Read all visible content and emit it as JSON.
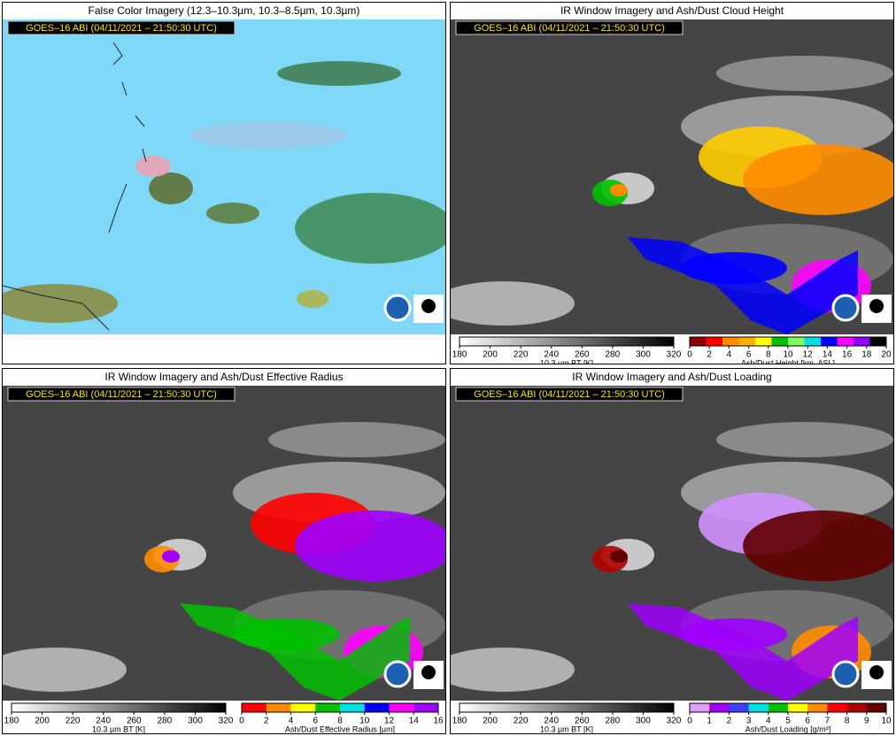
{
  "panels": [
    {
      "title": "False Color Imagery (12.3–10.3µm, 10.3–8.5µm, 10.3µm)",
      "stamp": "GOES–16 ABI (04/11/2021 – 21:50:30 UTC)"
    },
    {
      "title": "IR Window Imagery and Ash/Dust Cloud Height",
      "stamp": "GOES–16 ABI (04/11/2021 – 21:50:30 UTC)",
      "colorbars": [
        {
          "ticks": [
            180,
            200,
            220,
            240,
            260,
            280,
            300,
            320
          ],
          "label": "10.3 µm BT [K]"
        },
        {
          "ticks": [
            0,
            2,
            4,
            6,
            8,
            10,
            12,
            14,
            16,
            18,
            20
          ],
          "label": "Ash/Dust Height [km, ASL]"
        }
      ]
    },
    {
      "title": "IR Window Imagery and Ash/Dust Effective Radius",
      "stamp": "GOES–16 ABI (04/11/2021 – 21:50:30 UTC)",
      "colorbars": [
        {
          "ticks": [
            180,
            200,
            220,
            240,
            260,
            280,
            300,
            320
          ],
          "label": "10.3 µm BT [K]"
        },
        {
          "ticks": [
            0,
            2,
            4,
            6,
            8,
            10,
            12,
            14,
            16
          ],
          "label": "Ash/Dust Effective Radius [µm]"
        }
      ]
    },
    {
      "title": "IR Window Imagery and Ash/Dust Loading",
      "stamp": "GOES–16 ABI (04/11/2021 – 21:50:30 UTC)",
      "colorbars": [
        {
          "ticks": [
            180,
            200,
            220,
            240,
            260,
            280,
            300,
            320
          ],
          "label": "10.3 µm BT [K]"
        },
        {
          "ticks": [
            0,
            1,
            2,
            3,
            4,
            5,
            6,
            7,
            8,
            9,
            10
          ],
          "label": "Ash/Dust Loading [g/m²]"
        }
      ]
    }
  ]
}
